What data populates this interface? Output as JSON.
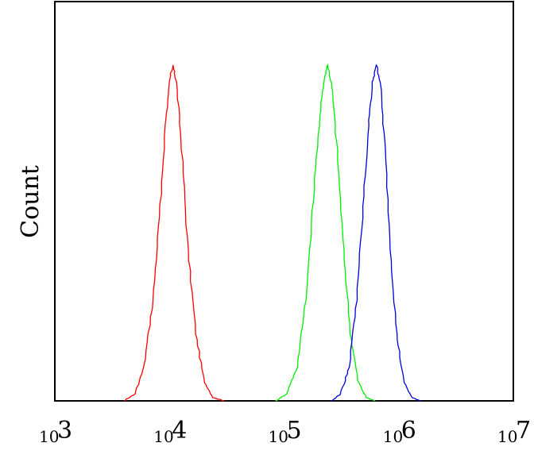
{
  "chart_data": {
    "type": "line",
    "title": "",
    "xlabel": "",
    "ylabel": "Count",
    "x_scale": "log",
    "xlim": [
      1000,
      10000000
    ],
    "ylim": [
      0,
      1
    ],
    "grid": false,
    "x_ticks": [
      {
        "value": 1000,
        "base": "10",
        "exp": "3"
      },
      {
        "value": 10000,
        "base": "10",
        "exp": "4"
      },
      {
        "value": 100000,
        "base": "10",
        "exp": "5"
      },
      {
        "value": 1000000,
        "base": "10",
        "exp": "6"
      },
      {
        "value": 10000000,
        "base": "10",
        "exp": "7"
      }
    ],
    "series": [
      {
        "color": "#ff0000",
        "points": [
          [
            4000,
            0
          ],
          [
            5000,
            0.02
          ],
          [
            6000,
            0.1
          ],
          [
            7200,
            0.3
          ],
          [
            8200,
            0.55
          ],
          [
            9200,
            0.82
          ],
          [
            10200,
            0.97
          ],
          [
            10700,
            1.0
          ],
          [
            11500,
            0.95
          ],
          [
            12800,
            0.75
          ],
          [
            14500,
            0.45
          ],
          [
            17000,
            0.2
          ],
          [
            20000,
            0.06
          ],
          [
            24000,
            0.01
          ],
          [
            30000,
            0
          ]
        ]
      },
      {
        "color": "#00ee00",
        "points": [
          [
            85000,
            0
          ],
          [
            105000,
            0.02
          ],
          [
            130000,
            0.1
          ],
          [
            155000,
            0.3
          ],
          [
            180000,
            0.6
          ],
          [
            205000,
            0.85
          ],
          [
            225000,
            0.96
          ],
          [
            240000,
            1.0
          ],
          [
            260000,
            0.94
          ],
          [
            290000,
            0.75
          ],
          [
            330000,
            0.45
          ],
          [
            380000,
            0.2
          ],
          [
            440000,
            0.06
          ],
          [
            520000,
            0.01
          ],
          [
            620000,
            0
          ]
        ]
      },
      {
        "color": "#0000dd",
        "points": [
          [
            260000,
            0
          ],
          [
            310000,
            0.02
          ],
          [
            370000,
            0.1
          ],
          [
            430000,
            0.3
          ],
          [
            490000,
            0.58
          ],
          [
            545000,
            0.82
          ],
          [
            590000,
            0.95
          ],
          [
            640000,
            1.0
          ],
          [
            690000,
            0.95
          ],
          [
            760000,
            0.75
          ],
          [
            850000,
            0.45
          ],
          [
            960000,
            0.2
          ],
          [
            1100000,
            0.06
          ],
          [
            1300000,
            0.01
          ],
          [
            1550000,
            0
          ]
        ]
      }
    ]
  }
}
